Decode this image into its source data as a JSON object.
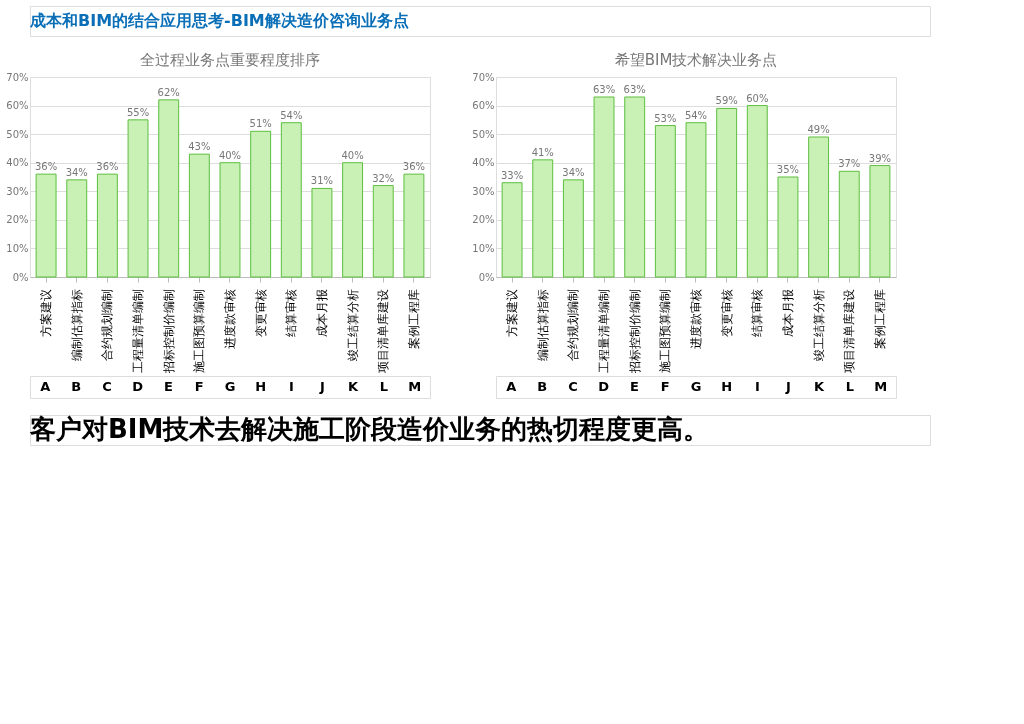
{
  "chart_data": [
    {
      "type": "bar",
      "title": "全过程业务点重要程度排序",
      "categories": [
        "方案建议",
        "编制估算指标",
        "合约规划编制",
        "工程量清单编制",
        "招标控制价编制",
        "施工图预算编制",
        "进度款审核",
        "变更审核",
        "结算审核",
        "成本月报",
        "竣工结算分析",
        "项目清单库建设",
        "案例工程库"
      ],
      "values": [
        36,
        34,
        36,
        55,
        62,
        43,
        40,
        51,
        54,
        31,
        40,
        32,
        36
      ],
      "value_labels": [
        "36%",
        "34%",
        "36%",
        "55%",
        "62%",
        "43%",
        "40%",
        "51%",
        "54%",
        "31%",
        "40%",
        "32%",
        "36%"
      ],
      "color": "#c9f0b5",
      "ylim": [
        0,
        70
      ],
      "yticks": [
        {
          "value": 0,
          "label": "0%"
        },
        {
          "value": 10,
          "label": "10%"
        },
        {
          "value": 20,
          "label": "20%"
        },
        {
          "value": 30,
          "label": "30%"
        },
        {
          "value": 40,
          "label": "40%"
        },
        {
          "value": 50,
          "label": "50%"
        },
        {
          "value": 60,
          "label": "60%"
        },
        {
          "value": 70,
          "label": "70%"
        }
      ],
      "grid": "y",
      "annotations": [
        "成本和BIM的结合应用思考-BIM解决造价咨询业务点",
        "A",
        "B",
        "C",
        "D",
        "E",
        "F",
        "G",
        "H",
        "I",
        "J",
        "K",
        "L",
        "M"
      ]
    },
    {
      "type": "bar",
      "title": "希望BIM技术解决业务点",
      "categories": [
        "方案建议",
        "编制估算指标",
        "合约规划编制",
        "工程量清单编制",
        "招标控制价编制",
        "施工图预算编制",
        "进度款审核",
        "变更审核",
        "结算审核",
        "成本月报",
        "竣工结算分析",
        "项目清单库建设",
        "案例工程库"
      ],
      "values": [
        33,
        41,
        34,
        63,
        63,
        53,
        54,
        59,
        60,
        35,
        49,
        37,
        39
      ],
      "value_labels": [
        "33%",
        "41%",
        "34%",
        "63%",
        "63%",
        "53%",
        "54%",
        "59%",
        "60%",
        "35%",
        "49%",
        "37%",
        "39%"
      ],
      "color": "#c9f0b5",
      "ylim": [
        0,
        70
      ],
      "yticks": [
        {
          "value": 0,
          "label": "0%"
        },
        {
          "value": 10,
          "label": "10%"
        },
        {
          "value": 20,
          "label": "20%"
        },
        {
          "value": 30,
          "label": "30%"
        },
        {
          "value": 40,
          "label": "40%"
        },
        {
          "value": 50,
          "label": "50%"
        },
        {
          "value": 60,
          "label": "60%"
        },
        {
          "value": 70,
          "label": "70%"
        }
      ],
      "grid": "y",
      "annotations": [
        "客户对BIM技术去解决施工阶段造价业务的热切程度更高。",
        "A",
        "B",
        "C",
        "D",
        "E",
        "F",
        "G",
        "H",
        "I",
        "J",
        "K",
        "L",
        "M"
      ]
    }
  ]
}
